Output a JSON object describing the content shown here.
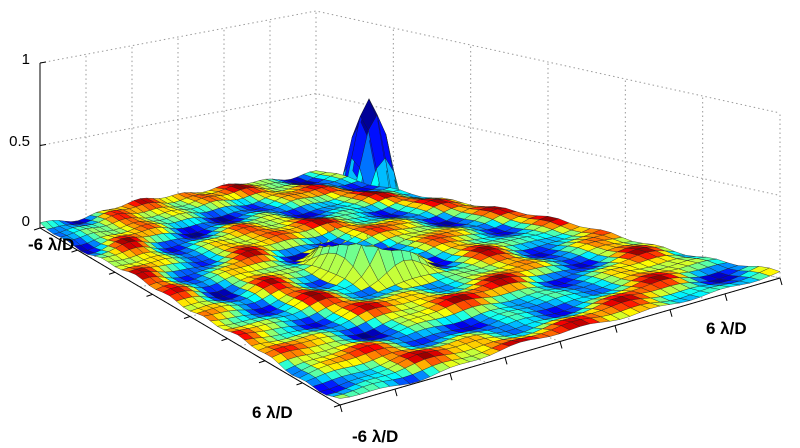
{
  "chart_data": {
    "type": "surface",
    "title": "",
    "colormap": "jet",
    "grid": true,
    "z_axis": {
      "ticks": [
        0,
        0.5,
        1
      ],
      "tick_labels": [
        "0",
        "0.5",
        "1"
      ],
      "range": [
        0,
        1
      ]
    },
    "x_axis": {
      "range_labels": [
        "-6 λ/D",
        "6 λ/D"
      ],
      "range": [
        -6,
        6
      ],
      "unit": "λ/D"
    },
    "y_axis": {
      "range_labels": [
        "-6 λ/D",
        "6 λ/D"
      ],
      "range": [
        -6,
        6
      ],
      "unit": "λ/D"
    },
    "peak": {
      "x": 0,
      "y": 0,
      "z": 0.97
    },
    "peak_width_lambda_over_d": 1.0,
    "background_ring_level": 0.06
  }
}
